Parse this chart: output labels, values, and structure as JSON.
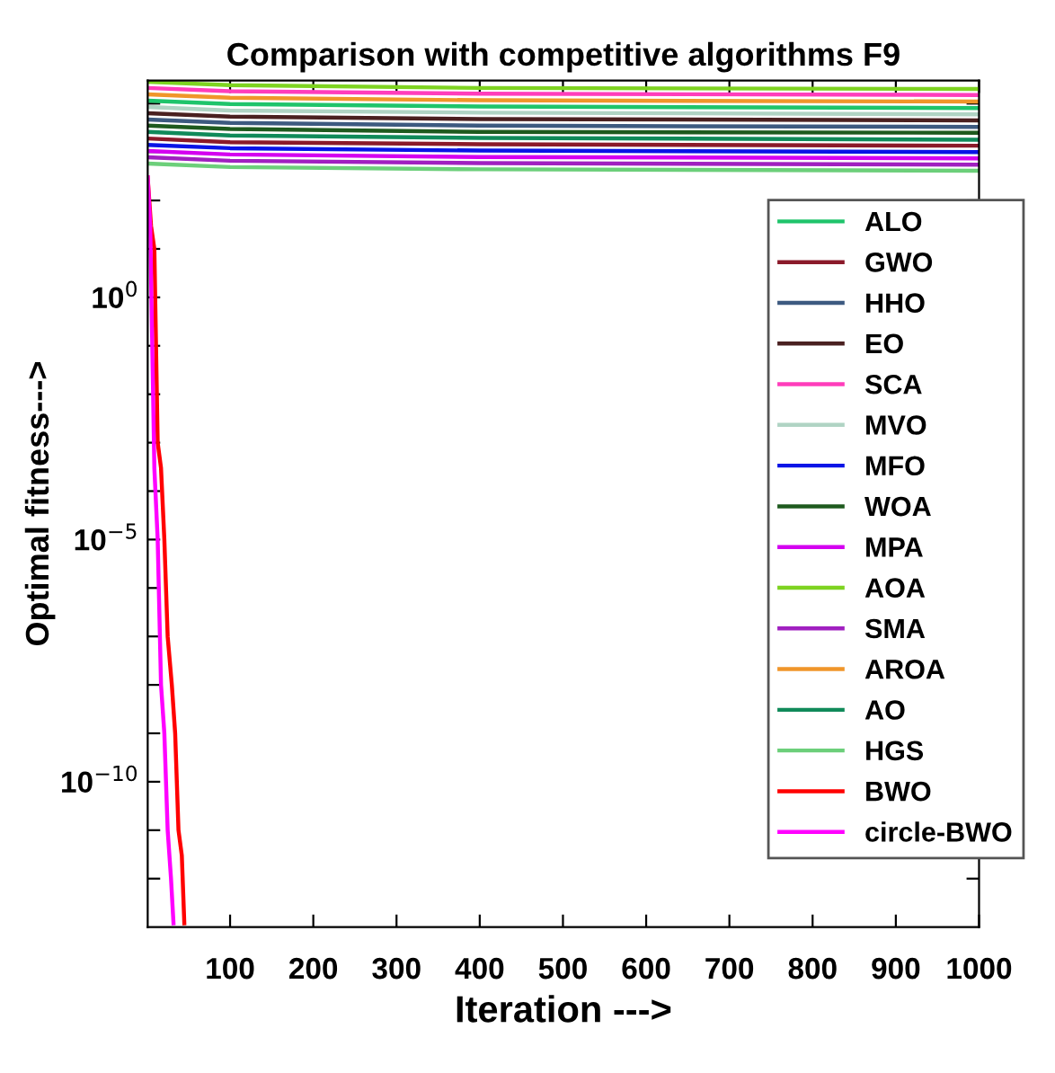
{
  "chart_data": {
    "type": "line",
    "title": "Comparison with competitive algorithms F9",
    "xlabel": "Iteration --->",
    "ylabel": "Optimal fitness--->",
    "log": "y",
    "xlim": [
      1,
      1000
    ],
    "xticks": [
      100,
      200,
      300,
      400,
      500,
      600,
      700,
      800,
      900,
      1000
    ],
    "ylim": [
      1e-13,
      30000
    ],
    "yticks": [
      {
        "value": 1e-12,
        "label": null
      },
      {
        "value": 1e-11,
        "label": null
      },
      {
        "value": 1e-10,
        "label": "10$^{−10}$"
      },
      {
        "value": 1e-09,
        "label": null
      },
      {
        "value": 1e-08,
        "label": null
      },
      {
        "value": 1e-07,
        "label": null
      },
      {
        "value": 1e-06,
        "label": null
      },
      {
        "value": 1e-05,
        "label": "10$^{−5}$"
      },
      {
        "value": 0.0001,
        "label": null
      },
      {
        "value": 0.001,
        "label": null
      },
      {
        "value": 0.01,
        "label": null
      },
      {
        "value": 0.1,
        "label": null
      },
      {
        "value": 1,
        "label": "10$^{0}$"
      },
      {
        "value": 10,
        "label": null
      },
      {
        "value": 100,
        "label": null
      },
      {
        "value": 1000,
        "label": null
      },
      {
        "value": 10000,
        "label": null
      }
    ],
    "grid": false,
    "legend": "right",
    "line_style": "solid",
    "marker": "none",
    "x": [
      1,
      100,
      400,
      1000
    ],
    "series": [
      {
        "name": "ALO",
        "color": "#1fc46b",
        "values": [
          11500,
          9800,
          8700,
          8100
        ]
      },
      {
        "name": "GWO",
        "color": "#8b1a2a",
        "values": [
          1900,
          1600,
          1450,
          1350
        ]
      },
      {
        "name": "HHO",
        "color": "#3d5a80",
        "values": [
          4700,
          4000,
          3500,
          3300
        ]
      },
      {
        "name": "EO",
        "color": "#4a2020",
        "values": [
          6300,
          5400,
          4800,
          4500
        ]
      },
      {
        "name": "SCA",
        "color": "#ff3dbb",
        "values": [
          21000,
          18000,
          16000,
          15000
        ]
      },
      {
        "name": "MVO",
        "color": "#b0d4c4",
        "values": [
          8500,
          7200,
          6500,
          6000
        ]
      },
      {
        "name": "MFO",
        "color": "#0a14e6",
        "values": [
          1400,
          1200,
          1070,
          1000
        ]
      },
      {
        "name": "WOA",
        "color": "#1e5a1e",
        "values": [
          3500,
          3000,
          2600,
          2500
        ]
      },
      {
        "name": "MPA",
        "color": "#d400f0",
        "values": [
          1050,
          890,
          790,
          740
        ]
      },
      {
        "name": "AOA",
        "color": "#7ed321",
        "values": [
          28000,
          24000,
          21000,
          20000
        ]
      },
      {
        "name": "SMA",
        "color": "#a020c0",
        "values": [
          780,
          660,
          590,
          550
        ]
      },
      {
        "name": "AROA",
        "color": "#f0962a",
        "values": [
          15500,
          13200,
          11700,
          11000
        ]
      },
      {
        "name": "AO",
        "color": "#108a5a",
        "values": [
          2600,
          2200,
          1950,
          1800
        ]
      },
      {
        "name": "HGS",
        "color": "#6ccf7a",
        "values": [
          580,
          490,
          440,
          410
        ]
      },
      {
        "name": "BWO",
        "color": "#ff0000",
        "x": [
          1,
          5,
          9,
          13,
          17,
          21,
          25,
          30,
          34,
          38,
          42,
          45
        ],
        "values": [
          300,
          30,
          10,
          0.001,
          0.0003,
          1e-05,
          1e-07,
          1e-08,
          1e-09,
          1e-11,
          3e-12,
          1.2e-13
        ]
      },
      {
        "name": "circle-BWO",
        "color": "#ff00ff",
        "x": [
          1,
          4,
          7,
          9,
          13,
          17,
          21,
          25,
          29,
          32
        ],
        "values": [
          300,
          30,
          0.03,
          0.0003,
          1e-05,
          1e-08,
          1e-09,
          1e-11,
          1e-12,
          1.2e-13
        ]
      }
    ]
  }
}
